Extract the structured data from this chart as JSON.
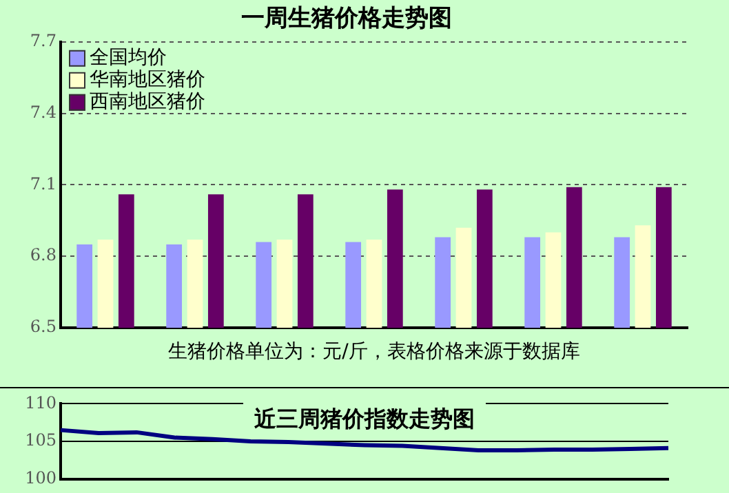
{
  "chart_data": [
    {
      "type": "bar",
      "title": "一周生猪价格走势图",
      "categories": [
        null,
        null,
        null,
        null,
        null,
        null,
        null
      ],
      "series": [
        {
          "name": "全国均价",
          "color": "#9999ff",
          "values": [
            6.85,
            6.85,
            6.86,
            6.86,
            6.88,
            6.88,
            6.88
          ]
        },
        {
          "name": "华南地区猪价",
          "color": "#ffffcc",
          "values": [
            6.87,
            6.87,
            6.87,
            6.87,
            6.92,
            6.9,
            6.93
          ]
        },
        {
          "name": "西南地区猪价",
          "color": "#660066",
          "values": [
            7.06,
            7.06,
            7.06,
            7.08,
            7.08,
            7.09,
            7.09
          ]
        }
      ],
      "ylim": [
        6.5,
        7.7
      ],
      "yticks": [
        6.5,
        6.8,
        7.1,
        7.4,
        7.7
      ],
      "grid": "y",
      "legend": "top left",
      "annotations": [
        "生猪价格单位为：元/斤，表格价格来源于数据库"
      ]
    },
    {
      "type": "line",
      "title": "近三周猪价指数走势图",
      "categories": [
        null,
        null,
        null,
        null,
        null,
        null,
        null,
        null,
        null,
        null,
        null,
        null,
        null,
        null,
        null,
        null,
        null
      ],
      "series": [
        {
          "color": "#000080",
          "values": [
            106.5,
            106.1,
            106.2,
            105.5,
            105.3,
            105.0,
            104.9,
            104.7,
            104.5,
            104.4,
            104.1,
            103.8,
            103.8,
            103.9,
            103.9,
            104.0,
            104.1
          ]
        }
      ],
      "ylim": [
        100,
        110
      ],
      "yticks": [
        100,
        105,
        110
      ],
      "grid": "y",
      "marker": "none"
    }
  ]
}
